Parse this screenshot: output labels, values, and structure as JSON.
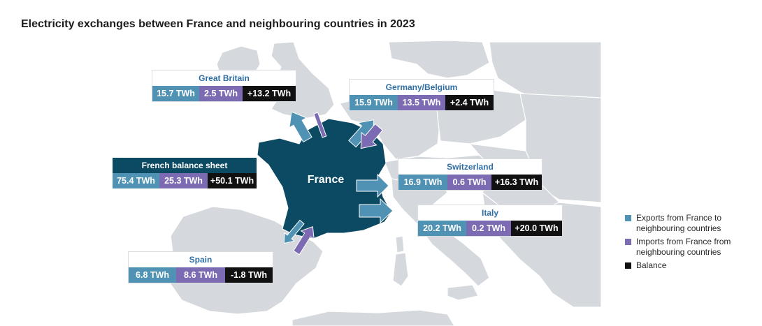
{
  "title": "Electricity exchanges between France and neighbouring countries in 2023",
  "map": {
    "center_label": "France"
  },
  "colors": {
    "exports": "#4f92b3",
    "imports": "#7c6bb3",
    "balance": "#111111",
    "france": "#0c4a63",
    "land": "#d5d8dc",
    "sea": "#ffffff"
  },
  "balance_sheet": {
    "name": "French balance sheet",
    "exports": "75.4 TWh",
    "imports": "25.3 TWh",
    "balance": "+50.1 TWh"
  },
  "countries": [
    {
      "name": "Great Britain",
      "exports": "15.7 TWh",
      "imports": "2.5 TWh",
      "balance": "+13.2 TWh"
    },
    {
      "name": "Germany/Belgium",
      "exports": "15.9 TWh",
      "imports": "13.5 TWh",
      "balance": "+2.4 TWh"
    },
    {
      "name": "Switzerland",
      "exports": "16.9 TWh",
      "imports": "0.6 TWh",
      "balance": "+16.3 TWh"
    },
    {
      "name": "Italy",
      "exports": "20.2 TWh",
      "imports": "0.2 TWh",
      "balance": "+20.0 TWh"
    },
    {
      "name": "Spain",
      "exports": "6.8 TWh",
      "imports": "8.6 TWh",
      "balance": "-1.8 TWh"
    }
  ],
  "legend": {
    "exports": "Exports from France to neighbouring countries",
    "imports": "Imports from France from neighbouring countries",
    "balance": "Balance"
  }
}
